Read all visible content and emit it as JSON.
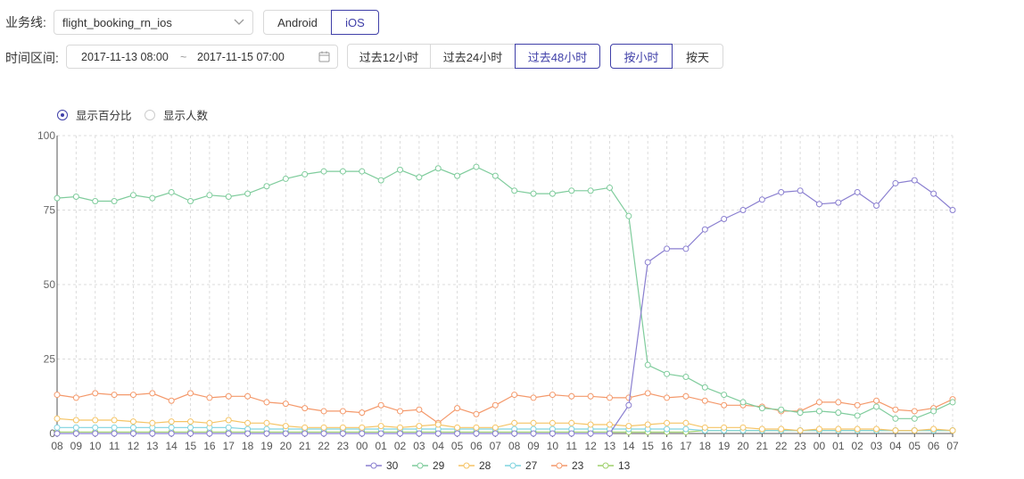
{
  "filters": {
    "business_line_label": "业务线:",
    "business_line_value": "flight_booking_rn_ios",
    "platforms": [
      {
        "label": "Android",
        "active": false
      },
      {
        "label": "iOS",
        "active": true
      }
    ],
    "time_range_label": "时间区间:",
    "start": "2017-11-13 08:00",
    "separator": "~",
    "end": "2017-11-15 07:00",
    "quick_ranges": [
      {
        "label": "过去12小时",
        "active": false
      },
      {
        "label": "过去24小时",
        "active": false
      },
      {
        "label": "过去48小时",
        "active": true
      }
    ],
    "granularity": [
      {
        "label": "按小时",
        "active": true
      },
      {
        "label": "按天",
        "active": false
      }
    ]
  },
  "display_mode": {
    "options": [
      {
        "label": "显示百分比",
        "selected": true
      },
      {
        "label": "显示人数",
        "selected": false
      }
    ]
  },
  "colors": {
    "accent": "#3f3fa8"
  },
  "chart_data": {
    "type": "line",
    "ylim": [
      0,
      100
    ],
    "yticks": [
      0,
      25,
      50,
      75,
      100
    ],
    "categories": [
      "08",
      "09",
      "10",
      "11",
      "12",
      "13",
      "14",
      "15",
      "16",
      "17",
      "18",
      "19",
      "20",
      "21",
      "22",
      "23",
      "00",
      "01",
      "02",
      "03",
      "04",
      "05",
      "06",
      "07",
      "08",
      "09",
      "10",
      "11",
      "12",
      "13",
      "14",
      "15",
      "16",
      "17",
      "18",
      "19",
      "20",
      "21",
      "22",
      "23",
      "00",
      "01",
      "02",
      "03",
      "04",
      "05",
      "06",
      "07"
    ],
    "series": [
      {
        "name": "30",
        "color": "#8a7fd0",
        "values": [
          0,
          0,
          0,
          0,
          0,
          0,
          0,
          0,
          0,
          0,
          0,
          0,
          0,
          0,
          0,
          0,
          0,
          0,
          0,
          0,
          0,
          0,
          0,
          0,
          0,
          0,
          0,
          0,
          0,
          0,
          9.5,
          57.5,
          62,
          62,
          68.5,
          72,
          75,
          78.5,
          81,
          81.5,
          77,
          77.5,
          81,
          76.5,
          84,
          85,
          80.5,
          75
        ]
      },
      {
        "name": "29",
        "color": "#7fcc9c",
        "values": [
          79,
          79.5,
          78,
          78,
          80,
          79,
          81,
          78,
          80,
          79.5,
          80.5,
          83,
          85.5,
          87,
          88,
          88,
          88,
          85,
          88.5,
          86,
          89,
          86.5,
          89.5,
          86.5,
          81.5,
          80.5,
          80.5,
          81.5,
          81.5,
          82.5,
          73,
          23,
          20,
          19,
          15.5,
          13,
          10.5,
          8.5,
          8,
          7,
          7.5,
          7,
          6,
          9,
          5,
          5,
          7.5,
          10.5
        ]
      },
      {
        "name": "28",
        "color": "#f5c465",
        "values": [
          5,
          4.5,
          4.5,
          4.5,
          4,
          3.5,
          4,
          4,
          3.5,
          4.5,
          3.5,
          3.5,
          2.5,
          2,
          2,
          2,
          2,
          2.5,
          2,
          2.5,
          3,
          2,
          2,
          2,
          3.5,
          3.5,
          3.5,
          3.5,
          3,
          3,
          2.5,
          3,
          3.5,
          3.5,
          2,
          2,
          2,
          1.5,
          1.5,
          1,
          1.5,
          1.5,
          1.5,
          1.5,
          1,
          1,
          1.5,
          1
        ]
      },
      {
        "name": "27",
        "color": "#7fd3df",
        "values": [
          2,
          2,
          2,
          2,
          2,
          2,
          2,
          2,
          2,
          2,
          1.5,
          1.5,
          1.5,
          1.5,
          1.5,
          1.5,
          1.5,
          1.5,
          1.5,
          1.5,
          1.5,
          1.5,
          1.5,
          1.5,
          1.5,
          1.5,
          1.5,
          1.5,
          1.5,
          1.5,
          1.5,
          1.5,
          1.5,
          1.5,
          1,
          1,
          1,
          1,
          1,
          1,
          1,
          1,
          1,
          1,
          1,
          1,
          1,
          1
        ]
      },
      {
        "name": "23",
        "color": "#f4996b",
        "values": [
          13,
          12,
          13.5,
          13,
          13,
          13.5,
          11,
          13.5,
          12,
          12.5,
          12.5,
          10.5,
          10,
          8.5,
          7.5,
          7.5,
          7,
          9.5,
          7.5,
          8,
          3.5,
          8.5,
          6.5,
          9.5,
          13,
          12,
          13,
          12.5,
          12.5,
          12,
          12,
          13.5,
          12,
          12.5,
          11,
          9.5,
          9.5,
          9,
          7.5,
          7.5,
          10.5,
          10.5,
          9.5,
          11,
          8,
          7.5,
          8.5,
          11.5
        ]
      },
      {
        "name": "13",
        "color": "#9ed06a",
        "values": [
          0.5,
          0.5,
          0.5,
          0.5,
          0.5,
          0.5,
          0.5,
          0.5,
          0.5,
          0.5,
          0.5,
          0.5,
          0.5,
          0.5,
          0.5,
          0.5,
          0.5,
          0.5,
          0.5,
          0.5,
          0.5,
          0.5,
          0.5,
          0.5,
          0.5,
          0.5,
          0.5,
          0.5,
          0.5,
          0.5,
          0.5,
          0.5,
          0.5,
          0.5,
          1,
          1,
          1,
          1,
          1,
          1,
          1,
          1,
          1,
          1,
          1,
          1,
          1,
          1
        ]
      }
    ],
    "legend_position": "bottom-center",
    "grid": true
  }
}
